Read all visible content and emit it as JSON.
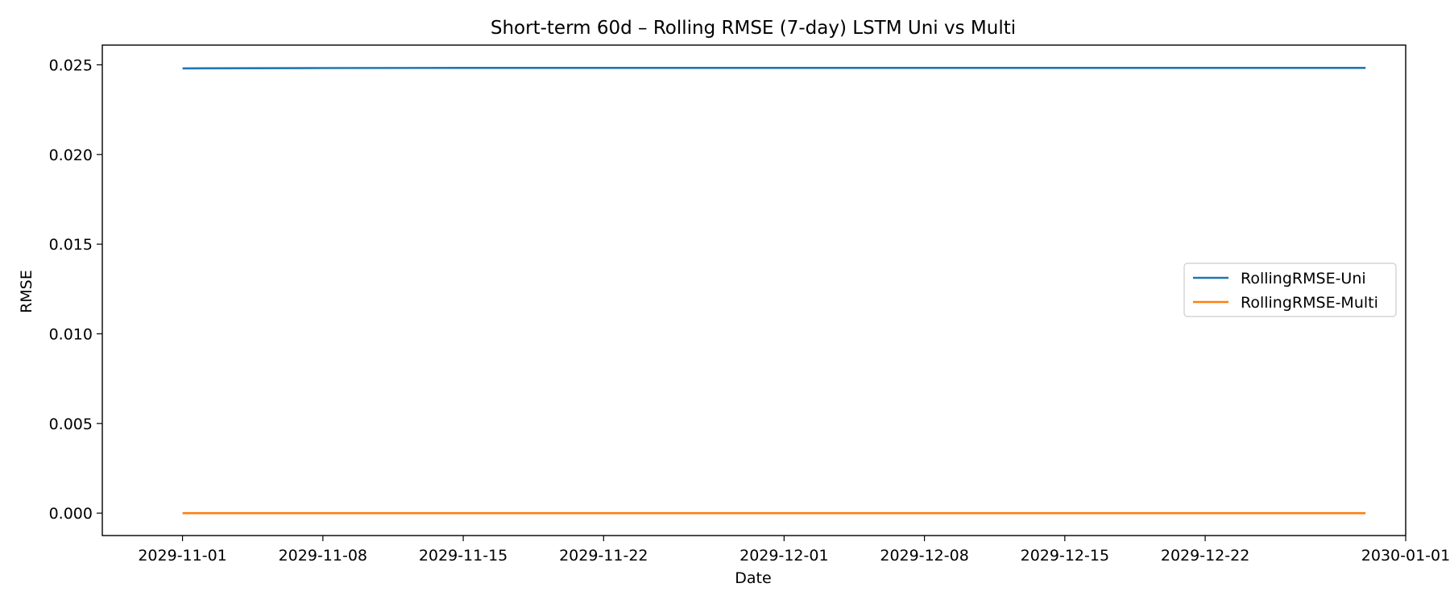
{
  "chart_data": {
    "type": "line",
    "title": "Short-term 60d – Rolling RMSE (7-day) LSTM Uni vs Multi",
    "xlabel": "Date",
    "ylabel": "RMSE",
    "x_range": [
      "2029-10-28",
      "2030-01-01"
    ],
    "ylim": [
      -0.00125,
      0.0261
    ],
    "x_ticks": [
      "2029-11-01",
      "2029-11-08",
      "2029-11-15",
      "2029-11-22",
      "2029-12-01",
      "2029-12-08",
      "2029-12-15",
      "2029-12-22",
      "2030-01-01"
    ],
    "y_ticks": [
      "0.000",
      "0.005",
      "0.010",
      "0.015",
      "0.020",
      "0.025"
    ],
    "grid": false,
    "legend_position": "center-right",
    "series": [
      {
        "name": "RollingRMSE-Uni",
        "color": "#1f77b4",
        "points": [
          {
            "x": "2029-11-01",
            "y": 0.0248
          },
          {
            "x": "2029-11-08",
            "y": 0.02482
          },
          {
            "x": "2029-11-15",
            "y": 0.02483
          },
          {
            "x": "2029-12-01",
            "y": 0.02483
          },
          {
            "x": "2029-12-30",
            "y": 0.02483
          }
        ]
      },
      {
        "name": "RollingRMSE-Multi",
        "color": "#ff7f0e",
        "points": [
          {
            "x": "2029-11-01",
            "y": 0.0
          },
          {
            "x": "2029-12-30",
            "y": 0.0
          }
        ]
      }
    ]
  }
}
